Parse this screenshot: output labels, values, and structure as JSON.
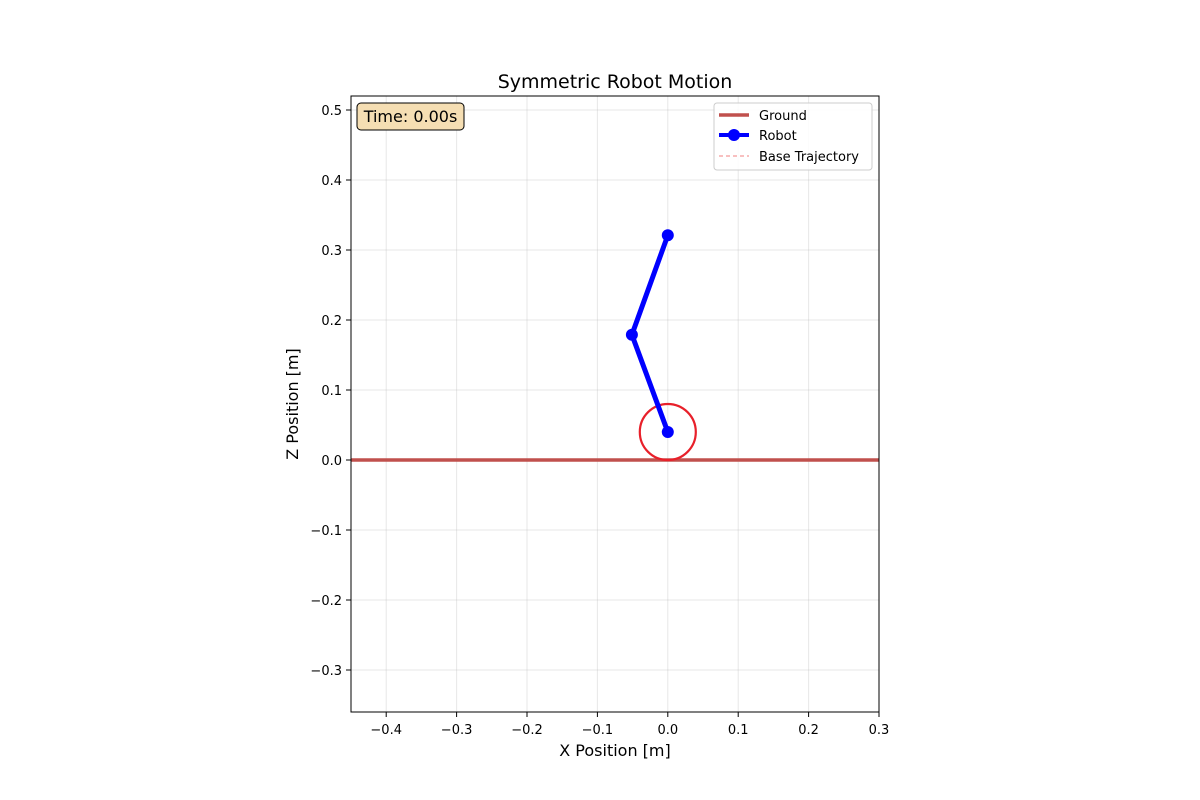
{
  "chart_data": {
    "type": "line",
    "title": "Symmetric Robot Motion",
    "xlabel": "X Position [m]",
    "ylabel": "Z Position [m]",
    "xlim": [
      -0.45,
      0.3
    ],
    "ylim": [
      -0.36,
      0.52
    ],
    "grid": true,
    "legend_position": "top-right",
    "x_ticks": [
      -0.4,
      -0.3,
      -0.2,
      -0.1,
      0.0,
      0.1,
      0.2,
      0.3
    ],
    "x_tick_labels": [
      "−0.4",
      "−0.3",
      "−0.2",
      "−0.1",
      "0.0",
      "0.1",
      "0.2",
      "0.3"
    ],
    "y_ticks": [
      -0.3,
      -0.2,
      -0.1,
      0.0,
      0.1,
      0.2,
      0.3,
      0.4,
      0.5
    ],
    "y_tick_labels": [
      "−0.3",
      "−0.2",
      "−0.1",
      "0.0",
      "0.1",
      "0.2",
      "0.3",
      "0.4",
      "0.5"
    ],
    "series": [
      {
        "name": "Ground",
        "color": "#c0504d",
        "style": "solid",
        "x": [
          -0.45,
          0.3
        ],
        "y": [
          0.0,
          0.0
        ]
      },
      {
        "name": "Robot",
        "color": "#0000ff",
        "style": "solid-marker",
        "x": [
          0.0,
          -0.051,
          0.0
        ],
        "y": [
          0.04,
          0.179,
          0.321
        ]
      },
      {
        "name": "Base Trajectory",
        "color": "#f08080",
        "style": "dashed",
        "x": [],
        "y": []
      }
    ],
    "wheel": {
      "center_x": 0.0,
      "center_y": 0.04,
      "radius": 0.04,
      "color": "#e8202a"
    },
    "annotation": {
      "text": "Time: 0.00s",
      "box_color": "#f5deb3",
      "position": "top-left"
    }
  }
}
